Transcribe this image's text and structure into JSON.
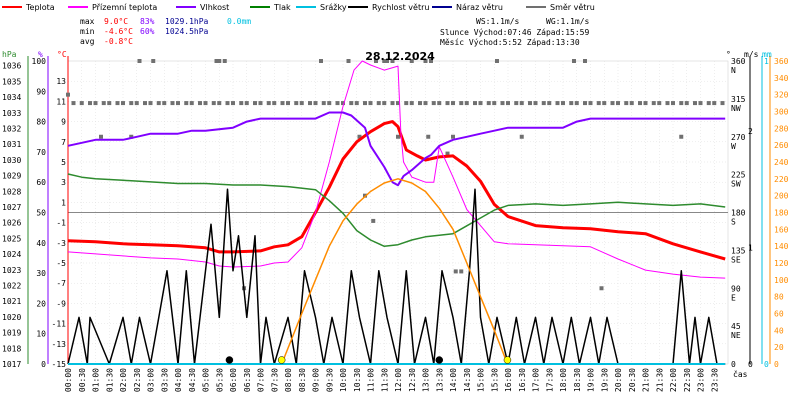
{
  "legend": [
    {
      "label": "Teplota",
      "color": "#ff0000"
    },
    {
      "label": "Přízemní teplota",
      "color": "#ff00ff"
    },
    {
      "label": "Vlhkost",
      "color": "#8000ff"
    },
    {
      "label": "Tlak",
      "color": "#008000"
    },
    {
      "label": "Srážky",
      "color": "#00c0e0"
    },
    {
      "label": "Rychlost větru",
      "color": "#000000"
    },
    {
      "label": "Náraz větru",
      "color": "#000090"
    },
    {
      "label": "Směr větru",
      "color": "#707070"
    }
  ],
  "stats": {
    "max": {
      "label": "max",
      "temp": "9.0°C",
      "hum": "83%",
      "press": "1029.1hPa",
      "rain": "0.0mm"
    },
    "min": {
      "label": "min",
      "temp": "-4.6°C",
      "hum": "60%",
      "press": "1024.5hPa"
    },
    "avg": {
      "label": "avg",
      "temp": "-0.8°C"
    }
  },
  "info": {
    "ws": "WS:1.1m/s",
    "wg": "WG:1.1m/s",
    "sun": "Slunce Východ:07:46  Západ:15:59",
    "moon": "Měsíc  Východ:5:52   Západ:13:30"
  },
  "colors": {
    "temp": "#ff0000",
    "dew": "#ff00ff",
    "hum": "#8000ff",
    "press": "#2e8b2e",
    "wind": "#000000",
    "dir": "#707070",
    "sun": "#ff8c00",
    "rain": "#00c0e0"
  },
  "chart_data": {
    "type": "line",
    "title": "28.12.2024",
    "xlabel": "čas",
    "x_ticks": [
      "00:00",
      "00:30",
      "01:00",
      "01:30",
      "02:00",
      "02:30",
      "03:00",
      "03:30",
      "04:00",
      "04:30",
      "05:00",
      "05:30",
      "06:00",
      "06:30",
      "07:00",
      "07:30",
      "08:00",
      "08:30",
      "09:00",
      "09:30",
      "10:00",
      "10:30",
      "11:00",
      "11:30",
      "12:00",
      "12:30",
      "13:00",
      "13:30",
      "14:00",
      "14:30",
      "15:00",
      "15:30",
      "16:00",
      "16:30",
      "17:00",
      "17:30",
      "18:00",
      "18:30",
      "19:00",
      "19:30",
      "20:00",
      "20:30",
      "21:00",
      "21:30",
      "22:00",
      "22:30",
      "23:00",
      "23:30"
    ],
    "axes": {
      "pressure": {
        "label": "hPa",
        "ticks": [
          "1017",
          "1018",
          "1019",
          "1020",
          "1021",
          "1022",
          "1023",
          "1024",
          "1025",
          "1026",
          "1027",
          "1028",
          "1029",
          "1030",
          "1031",
          "1032",
          "1033",
          "1034",
          "1035",
          "1036"
        ],
        "ylim": [
          1017,
          1036.3
        ]
      },
      "humidity": {
        "label": "%",
        "ticks": [
          "0",
          "10",
          "20",
          "30",
          "40",
          "50",
          "60",
          "70",
          "80",
          "90",
          "100"
        ],
        "ylim": [
          0,
          100
        ]
      },
      "temperature": {
        "label": "°C",
        "ticks": [
          "-15",
          "-13",
          "-11",
          "-9",
          "-7",
          "-5",
          "-3",
          "-1",
          "1",
          "3",
          "5",
          "7",
          "9",
          "11",
          "13"
        ],
        "ylim": [
          -15,
          15
        ]
      },
      "direction": {
        "label": "°",
        "ticks": [
          "0",
          "45\nNE",
          "90\nE",
          "135\nSE",
          "180\nS",
          "225\nSW",
          "270\nW",
          "315\nNW",
          "360\nN"
        ],
        "ylim": [
          0,
          360
        ]
      },
      "wind": {
        "label": "m/s",
        "ticks": [
          "0",
          "1",
          "2"
        ],
        "ylim": [
          0,
          2.6
        ]
      },
      "rain": {
        "label": "mm",
        "ticks": [
          "0",
          "1"
        ],
        "ylim": [
          0,
          1
        ]
      },
      "sun": {
        "ticks": [
          "0",
          "20",
          "40",
          "60",
          "80",
          "100",
          "120",
          "140",
          "160",
          "180",
          "200",
          "220",
          "240",
          "260",
          "280",
          "300",
          "320",
          "340",
          "360"
        ],
        "ylim": [
          0,
          360
        ]
      }
    },
    "series": [
      {
        "name": "Teplota",
        "axis": "temperature",
        "color": "#ff0000",
        "x": [
          0,
          1,
          2,
          3,
          4,
          5,
          5.5,
          6,
          7,
          7.5,
          8,
          8.5,
          9,
          9.5,
          10,
          10.5,
          11,
          11.5,
          11.8,
          12,
          12.3,
          12.7,
          13,
          13.5,
          14,
          14.5,
          15,
          15.5,
          16,
          17,
          18,
          19,
          20,
          21,
          22,
          23,
          23.9
        ],
        "y": [
          -2.8,
          -2.9,
          -3.1,
          -3.2,
          -3.3,
          -3.5,
          -3.9,
          -3.9,
          -3.8,
          -3.4,
          -3.2,
          -2.4,
          0,
          2.5,
          5.3,
          7,
          8,
          8.8,
          9.0,
          8.5,
          6.2,
          5.6,
          5.2,
          5.5,
          5.6,
          4.6,
          3.1,
          0.8,
          -0.4,
          -1.3,
          -1.5,
          -1.6,
          -1.9,
          -2.1,
          -3.1,
          -3.9,
          -4.6
        ]
      },
      {
        "name": "Přízemní teplota",
        "axis": "temperature",
        "color": "#ff00ff",
        "x": [
          0,
          1,
          2,
          3,
          4,
          5,
          5.5,
          6,
          7,
          7.5,
          8,
          8.5,
          9,
          9.5,
          10,
          10.4,
          10.7,
          11,
          11.5,
          12,
          12.1,
          12.2,
          12.5,
          13,
          13.3,
          13.5,
          14,
          14.5,
          15,
          15.5,
          16,
          17,
          18,
          19,
          20,
          21,
          22,
          23,
          23.9
        ],
        "y": [
          -3.9,
          -4.1,
          -4.3,
          -4.5,
          -4.6,
          -4.9,
          -5.3,
          -5.4,
          -5.3,
          -5,
          -4.9,
          -3.5,
          0,
          5,
          10.5,
          14.1,
          15,
          14.6,
          14.1,
          14.5,
          8,
          5,
          3.5,
          3,
          3,
          6.5,
          3.5,
          0.3,
          -1.3,
          -2.9,
          -3.1,
          -3.2,
          -3.3,
          -3.4,
          -4.6,
          -5.7,
          -6.1,
          -6.4,
          -6.5
        ]
      },
      {
        "name": "Vlhkost",
        "axis": "humidity",
        "color": "#8000ff",
        "x": [
          0,
          0.5,
          1,
          2,
          2.5,
          3,
          4,
          4.5,
          5,
          6,
          6.5,
          7,
          8,
          9,
          9.5,
          10,
          10.3,
          10.8,
          11,
          11.5,
          11.8,
          12,
          12.2,
          12.5,
          13,
          13.2,
          13.5,
          14,
          14.5,
          15,
          15.5,
          16,
          17,
          18,
          18.5,
          19,
          20,
          21,
          22,
          23,
          23.9
        ],
        "y": [
          72,
          73,
          74,
          74,
          75,
          76,
          76,
          77,
          77,
          78,
          80,
          81,
          81,
          81,
          83,
          83,
          82,
          78,
          72,
          65,
          60,
          59,
          62,
          64,
          68,
          69,
          72,
          74,
          75,
          76,
          77,
          78,
          78,
          78,
          80,
          81,
          81,
          81,
          81,
          81,
          81
        ]
      },
      {
        "name": "Tlak",
        "axis": "pressure",
        "color": "#2e8b2e",
        "x": [
          0,
          0.5,
          1,
          2,
          3,
          4,
          5,
          6,
          7,
          8,
          9,
          9.5,
          10,
          10.5,
          11,
          11.5,
          12,
          12.5,
          13,
          14,
          14.5,
          15,
          15.5,
          16,
          17,
          18,
          19,
          20,
          21,
          22,
          23,
          23.9
        ],
        "y": [
          1029.1,
          1028.9,
          1028.8,
          1028.7,
          1028.6,
          1028.5,
          1028.5,
          1028.4,
          1028.4,
          1028.3,
          1028.1,
          1027.4,
          1026.6,
          1025.5,
          1024.9,
          1024.5,
          1024.6,
          1024.9,
          1025.1,
          1025.3,
          1025.8,
          1026.3,
          1026.8,
          1027.1,
          1027.2,
          1027.1,
          1027.2,
          1027.3,
          1027.2,
          1027.1,
          1027.2,
          1027.0
        ]
      },
      {
        "name": "Rychlost větru",
        "axis": "wind",
        "color": "#000000",
        "x": [
          0,
          0.4,
          0.7,
          0.8,
          1.5,
          2,
          2.3,
          2.6,
          3,
          3.3,
          3.6,
          4,
          4.3,
          4.6,
          5,
          5.2,
          5.5,
          5.8,
          6,
          6.2,
          6.5,
          6.8,
          7,
          7.2,
          7.5,
          8,
          8.3,
          8.6,
          9,
          9.3,
          9.6,
          10,
          10.3,
          10.6,
          11,
          11.3,
          11.6,
          12,
          12.3,
          12.6,
          13,
          13.3,
          13.6,
          14,
          14.3,
          14.6,
          14.8,
          15,
          15.3,
          15.6,
          16,
          16.3,
          16.6,
          17,
          17.3,
          17.6,
          18,
          18.3,
          18.6,
          19,
          19.3,
          19.6,
          20,
          20.5,
          21,
          21.5,
          22,
          22.3,
          22.6,
          22.8,
          23,
          23.3,
          23.6,
          23.9
        ],
        "y": [
          0,
          0.4,
          0,
          0.4,
          0,
          0.4,
          0,
          0.4,
          0,
          0.4,
          0.8,
          0,
          0.8,
          0,
          0.8,
          1.2,
          0.4,
          1.5,
          0.8,
          1.1,
          0.4,
          1.1,
          0,
          0.4,
          0,
          0.4,
          0,
          0.8,
          0.4,
          0,
          0.4,
          0,
          0.8,
          0.4,
          0,
          0.8,
          0.4,
          0,
          0.8,
          0,
          0.4,
          0,
          0.8,
          0.4,
          0,
          0.8,
          1.5,
          0.4,
          0,
          0.4,
          0,
          0.4,
          0,
          0.4,
          0,
          0.4,
          0,
          0.4,
          0,
          0.4,
          0,
          0.4,
          0,
          0,
          0,
          0,
          0,
          0.8,
          0,
          0.4,
          0,
          0.4,
          0,
          0
        ]
      },
      {
        "name": "Slunce",
        "axis": "sun",
        "color": "#ff8c00",
        "x": [
          7.77,
          8.5,
          9,
          9.5,
          10,
          10.5,
          11,
          11.5,
          12,
          12.5,
          13,
          13.5,
          14,
          14.5,
          15,
          15.5,
          15.98
        ],
        "y": [
          0,
          60,
          100,
          140,
          170,
          190,
          205,
          215,
          220,
          215,
          205,
          185,
          160,
          120,
          80,
          40,
          0
        ]
      },
      {
        "name": "Srážky",
        "axis": "rain",
        "color": "#00c0e0",
        "x": [
          0,
          23.9
        ],
        "y": [
          0,
          0
        ]
      }
    ],
    "direction_points": {
      "axis": "direction",
      "color": "#707070",
      "x": [
        0,
        0.2,
        0.5,
        0.8,
        1,
        1.3,
        1.5,
        1.8,
        2,
        2.3,
        2.5,
        2.8,
        3,
        3.3,
        3.5,
        3.8,
        4,
        4.3,
        4.5,
        4.8,
        5,
        5.3,
        5.5,
        5.8,
        6,
        6.3,
        6.5,
        6.8,
        7,
        7.3,
        7.5,
        7.8,
        8,
        8.3,
        8.5,
        8.8,
        9,
        9.3,
        9.5,
        9.8,
        10,
        10.3,
        10.5,
        10.8,
        11,
        11.3,
        11.5,
        11.8,
        12,
        12.3,
        12.5,
        12.8,
        13,
        13.3,
        13.5,
        13.8,
        14,
        14.3,
        14.5,
        14.8,
        15,
        15.3,
        15.5,
        15.8,
        16,
        16.3,
        16.5,
        16.8,
        17,
        17.3,
        17.5,
        17.8,
        18,
        18.3,
        18.5,
        18.8,
        19,
        19.3,
        19.5,
        19.8,
        20,
        20.3,
        20.5,
        20.8,
        21,
        21.3,
        21.5,
        21.8,
        22,
        22.3,
        22.5,
        22.8,
        23,
        23.3,
        23.5,
        23.8,
        1.2,
        2.3,
        2.6,
        3.1,
        5.4,
        5.5,
        5.7,
        6.4,
        9.2,
        10.2,
        10.6,
        10.8,
        11.1,
        11.2,
        11.5,
        11.6,
        11.8,
        12,
        12.5,
        13,
        13.1,
        13.2,
        13.8,
        14,
        14.1,
        14.3,
        15.6,
        16.5,
        18.4,
        18.8,
        19.4,
        22.3
      ],
      "y": [
        320,
        310,
        310,
        310,
        310,
        310,
        310,
        310,
        310,
        310,
        310,
        310,
        310,
        310,
        310,
        310,
        310,
        310,
        310,
        310,
        310,
        310,
        310,
        310,
        310,
        310,
        310,
        310,
        310,
        310,
        310,
        310,
        310,
        310,
        310,
        310,
        310,
        310,
        310,
        310,
        310,
        310,
        310,
        310,
        310,
        310,
        310,
        310,
        310,
        310,
        310,
        310,
        310,
        310,
        310,
        310,
        310,
        310,
        310,
        310,
        310,
        310,
        310,
        310,
        310,
        310,
        310,
        310,
        310,
        310,
        310,
        310,
        310,
        310,
        310,
        310,
        310,
        310,
        310,
        310,
        310,
        310,
        310,
        310,
        310,
        310,
        310,
        310,
        310,
        310,
        310,
        310,
        310,
        310,
        310,
        310,
        270,
        270,
        360,
        360,
        360,
        360,
        360,
        90,
        360,
        360,
        270,
        200,
        170,
        360,
        360,
        360,
        360,
        270,
        360,
        360,
        270,
        360,
        250,
        270,
        110,
        110,
        360,
        270,
        360,
        360,
        90,
        270
      ]
    },
    "markers": [
      {
        "type": "moonrise",
        "x": 5.87,
        "color": "#000000"
      },
      {
        "type": "sunrise",
        "x": 7.77,
        "color": "#ffff00"
      },
      {
        "type": "moonset",
        "x": 13.5,
        "color": "#000000"
      },
      {
        "type": "sunset",
        "x": 15.98,
        "color": "#ffff00"
      }
    ]
  }
}
